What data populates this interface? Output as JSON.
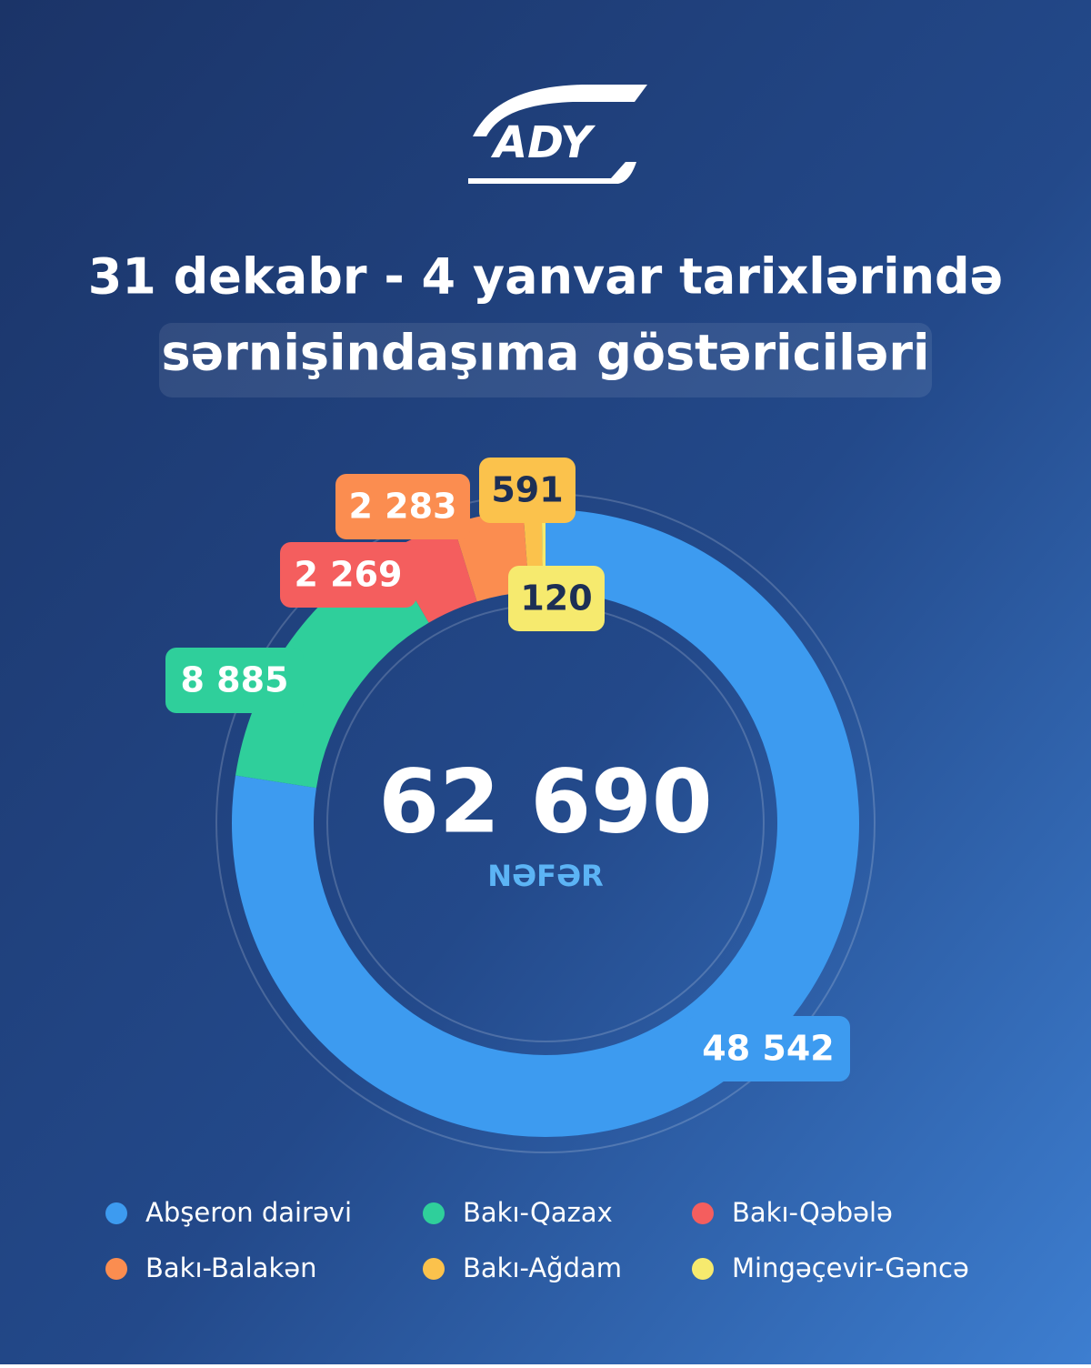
{
  "logo": "ADY",
  "chart_data": {
    "type": "donut",
    "title": "31 dekabr - 4 yanvar tarixlərində",
    "subtitle": "sərnişindaşıma göstəriciləri",
    "total": {
      "value": 62690,
      "label": "62 690"
    },
    "unit": "NƏFƏR",
    "categories": [
      "Abşeron dairəvi",
      "Bakı-Qazax",
      "Bakı-Qəbələ",
      "Bakı-Balakən",
      "Bakı-Ağdam",
      "Mingəçevir-Gəncə"
    ],
    "values": [
      48542,
      8885,
      2269,
      2283,
      591,
      120
    ],
    "value_labels": [
      "48 542",
      "8 885",
      "2 269",
      "2 283",
      "591",
      "120"
    ],
    "colors": [
      "#3d9bf0",
      "#2fcf9b",
      "#f45e5e",
      "#fb8d50",
      "#fbc24c",
      "#f6ea6e"
    ]
  }
}
